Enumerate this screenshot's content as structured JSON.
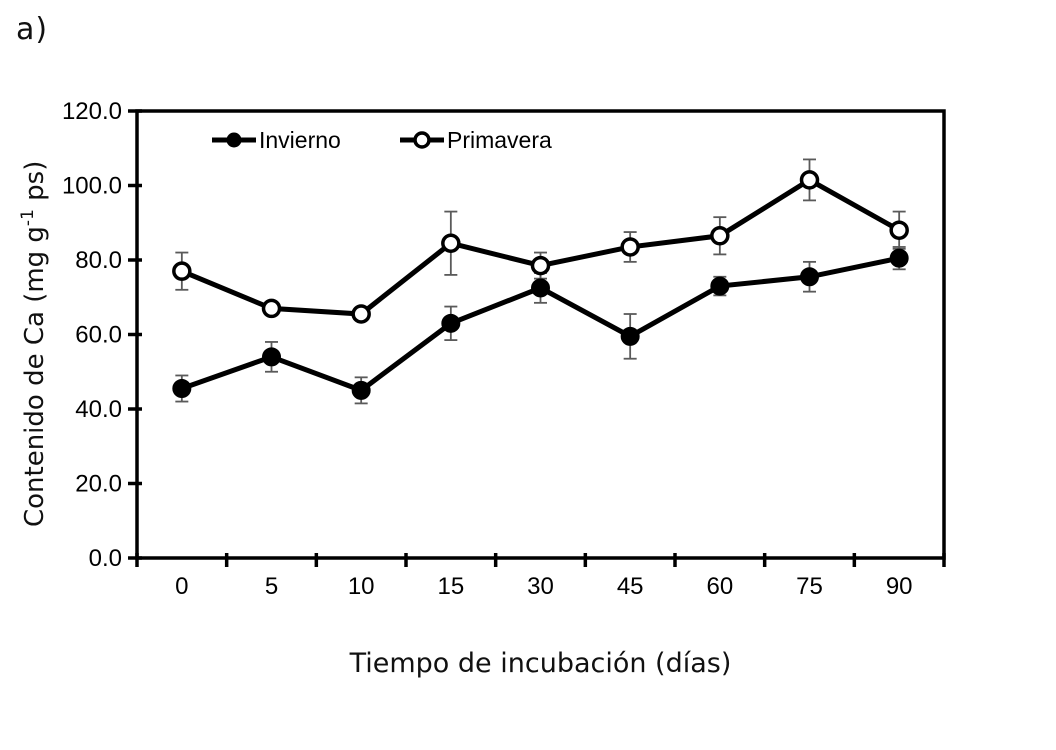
{
  "panel_label": "a)",
  "chart_data": {
    "type": "line",
    "title": "",
    "xlabel": "Tiempo de incubación (días)",
    "ylabel": {
      "prefix": "Contenido de Ca (mg g",
      "sup": "-1",
      "suffix": " ps)"
    },
    "categories": [
      "0",
      "5",
      "10",
      "15",
      "30",
      "45",
      "60",
      "75",
      "90"
    ],
    "y_ticks": [
      "0.0",
      "20.0",
      "40.0",
      "60.0",
      "80.0",
      "100.0",
      "120.0"
    ],
    "ylim": [
      0,
      120
    ],
    "grid": false,
    "legend_position": "top-inside",
    "frame_color": "#000000",
    "error_bar_color": "#5a5a5a",
    "series": [
      {
        "name": "Invierno",
        "marker": "filled-circle",
        "color": "#000000",
        "values": [
          45.5,
          54.0,
          45.0,
          63.0,
          72.5,
          59.5,
          73.0,
          75.5,
          80.5
        ],
        "errors": [
          3.5,
          4.0,
          3.5,
          4.5,
          4.0,
          6.0,
          2.5,
          4.0,
          3.0
        ]
      },
      {
        "name": "Primavera",
        "marker": "open-circle",
        "color": "#000000",
        "values": [
          77.0,
          67.0,
          65.5,
          84.5,
          78.5,
          83.5,
          86.5,
          101.5,
          88.0
        ],
        "errors": [
          5.0,
          1.5,
          1.5,
          8.5,
          3.5,
          4.0,
          5.0,
          5.5,
          5.0
        ]
      }
    ]
  }
}
